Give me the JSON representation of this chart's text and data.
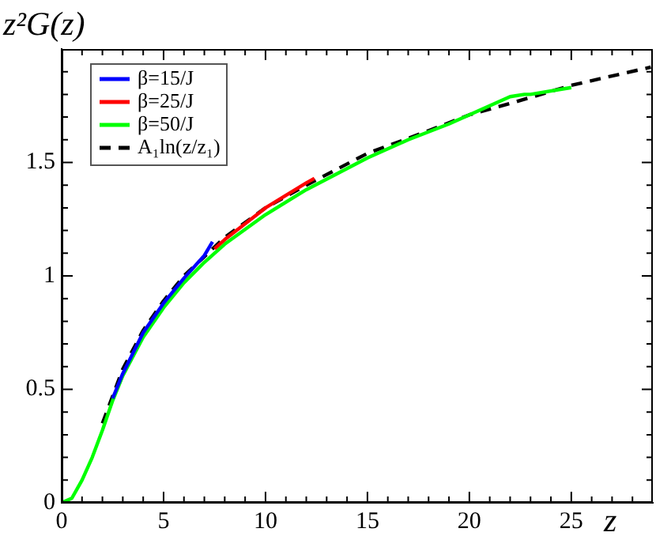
{
  "chart_data": {
    "type": "line",
    "xlabel": "z",
    "ylabel": "z²G(z)",
    "xlim": [
      0,
      29
    ],
    "ylim": [
      0,
      2
    ],
    "xticks": [
      0,
      {
        "value": 1,
        "label": null
      },
      {
        "value": 2,
        "label": null
      },
      {
        "value": 3,
        "label": null
      },
      {
        "value": 4,
        "label": null
      },
      5,
      {
        "value": 6,
        "label": null
      },
      {
        "value": 7,
        "label": null
      },
      {
        "value": 8,
        "label": null
      },
      {
        "value": 9,
        "label": null
      },
      10,
      {
        "value": 11,
        "label": null
      },
      {
        "value": 12,
        "label": null
      },
      {
        "value": 13,
        "label": null
      },
      {
        "value": 14,
        "label": null
      },
      15,
      {
        "value": 16,
        "label": null
      },
      {
        "value": 17,
        "label": null
      },
      {
        "value": 18,
        "label": null
      },
      {
        "value": 19,
        "label": null
      },
      20,
      {
        "value": 21,
        "label": null
      },
      {
        "value": 22,
        "label": null
      },
      {
        "value": 23,
        "label": null
      },
      {
        "value": 24,
        "label": null
      },
      25,
      {
        "value": 26,
        "label": null
      },
      {
        "value": 27,
        "label": null
      },
      {
        "value": 28,
        "label": null
      }
    ],
    "yticks": [
      0,
      {
        "value": 0.1,
        "label": null
      },
      {
        "value": 0.2,
        "label": null
      },
      {
        "value": 0.3,
        "label": null
      },
      {
        "value": 0.4,
        "label": null
      },
      0.5,
      {
        "value": 0.6,
        "label": null
      },
      {
        "value": 0.7,
        "label": null
      },
      {
        "value": 0.8,
        "label": null
      },
      {
        "value": 0.9,
        "label": null
      },
      1,
      {
        "value": 1.1,
        "label": null
      },
      {
        "value": 1.2,
        "label": null
      },
      {
        "value": 1.3,
        "label": null
      },
      {
        "value": 1.4,
        "label": null
      },
      1.5,
      {
        "value": 1.6,
        "label": null
      },
      {
        "value": 1.7,
        "label": null
      },
      {
        "value": 1.8,
        "label": null
      },
      {
        "value": 1.9,
        "label": null
      }
    ],
    "grid": false,
    "legend": "top left",
    "marker": "none",
    "series": [
      {
        "name": "β=15/J",
        "color": "#0000ff",
        "x": [
          2.5,
          3,
          4,
          5,
          6,
          7,
          7.4
        ],
        "values": [
          0.46,
          0.57,
          0.75,
          0.88,
          0.99,
          1.09,
          1.15
        ]
      },
      {
        "name": "β=25/J",
        "color": "#ff0000",
        "x": [
          7.5,
          8,
          10,
          12,
          12.4
        ],
        "values": [
          1.12,
          1.16,
          1.3,
          1.41,
          1.43
        ]
      },
      {
        "name": "β=50/J",
        "color": "#00ff00",
        "x": [
          0,
          0.5,
          1,
          1.5,
          2,
          2.5,
          3,
          4,
          5,
          6,
          7,
          8,
          10,
          12,
          15,
          17,
          19,
          20,
          21,
          22,
          22.7,
          23,
          25
        ],
        "values": [
          0,
          0.02,
          0.1,
          0.2,
          0.32,
          0.45,
          0.56,
          0.73,
          0.86,
          0.97,
          1.06,
          1.14,
          1.27,
          1.38,
          1.52,
          1.6,
          1.67,
          1.71,
          1.75,
          1.79,
          1.8,
          1.8,
          1.83
        ]
      },
      {
        "name": "A₁ln(z/z₁)",
        "color": "#000000",
        "line_style": "dashed",
        "x": [
          2,
          3,
          4,
          5,
          6,
          8,
          10,
          12,
          15,
          18,
          20,
          22,
          25,
          28.9
        ],
        "values": [
          0.35,
          0.59,
          0.76,
          0.89,
          1.0,
          1.17,
          1.3,
          1.4,
          1.54,
          1.64,
          1.71,
          1.76,
          1.84,
          1.92
        ]
      }
    ]
  }
}
